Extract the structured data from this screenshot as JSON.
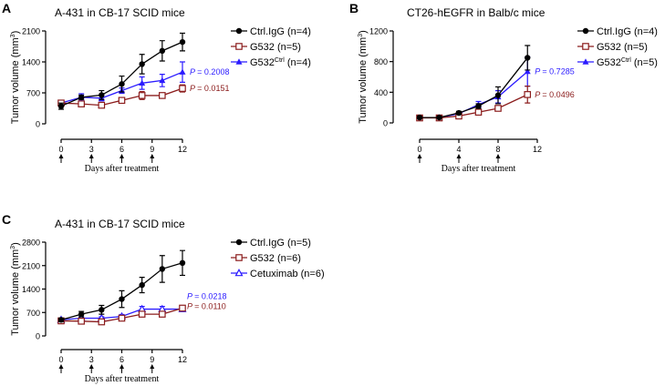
{
  "colors": {
    "ctrl": "#000000",
    "g532": "#8b1c1c",
    "blue": "#2b1bff"
  },
  "chart_data": [
    {
      "type": "line",
      "panel": "A",
      "title": "A-431 in CB-17 SCID mice",
      "ylabel": "Tumor volume (mm",
      "ylabel_sup": "3",
      "ylabel_end": ")",
      "xlabel": "Days after treatment",
      "ylim": [
        0,
        2100
      ],
      "yticks": [
        "0",
        "700",
        "1400",
        "2100"
      ],
      "xlim": [
        0,
        12
      ],
      "xticks": [
        "0",
        "3",
        "6",
        "9",
        "12"
      ],
      "arrows_at": [
        0,
        3,
        6,
        9
      ],
      "series": [
        {
          "name": "Ctrl.IgG",
          "sup": "",
          "n": "(n=4)",
          "marker": "circle",
          "color": "ctrl",
          "x": [
            0,
            2,
            4,
            6,
            8,
            10,
            12
          ],
          "y": [
            400,
            600,
            650,
            900,
            1350,
            1650,
            1850
          ],
          "err": [
            70,
            50,
            100,
            180,
            220,
            230,
            200
          ]
        },
        {
          "name": "G532",
          "sup": "",
          "n": "(n=5)",
          "marker": "square-open",
          "color": "g532",
          "x": [
            0,
            2,
            4,
            6,
            8,
            10,
            12
          ],
          "y": [
            470,
            450,
            420,
            530,
            640,
            640,
            800
          ],
          "err": [
            40,
            30,
            30,
            40,
            90,
            50,
            80
          ],
          "p": "= 0.0151"
        },
        {
          "name": "G532",
          "sup": "Ctrl",
          "n": "(n=4)",
          "marker": "triangle",
          "color": "blue",
          "x": [
            0,
            2,
            4,
            6,
            8,
            10,
            12
          ],
          "y": [
            470,
            600,
            580,
            750,
            920,
            980,
            1170
          ],
          "err": [
            40,
            80,
            60,
            60,
            140,
            140,
            230
          ],
          "p": "= 0.2008"
        }
      ]
    },
    {
      "type": "line",
      "panel": "B",
      "title": "CT26-hEGFR in Balb/c mice",
      "ylabel": "Tumor volume (mm",
      "ylabel_sup": "3",
      "ylabel_end": ")",
      "xlabel": "Days after treatment",
      "ylim": [
        0,
        1200
      ],
      "yticks": [
        "0",
        "400",
        "800",
        "1200"
      ],
      "xlim": [
        0,
        12
      ],
      "xticks": [
        "0",
        "4",
        "8",
        "12"
      ],
      "arrows_at": [
        0,
        4,
        8
      ],
      "series": [
        {
          "name": "Ctrl.IgG",
          "sup": "",
          "n": "(n=4)",
          "marker": "circle",
          "color": "ctrl",
          "x": [
            0,
            2,
            4,
            6,
            8,
            11
          ],
          "y": [
            70,
            70,
            130,
            220,
            360,
            850
          ],
          "err": [
            15,
            10,
            20,
            30,
            110,
            160
          ]
        },
        {
          "name": "G532",
          "sup": "",
          "n": "(n=5)",
          "marker": "square-open",
          "color": "g532",
          "x": [
            0,
            2,
            4,
            6,
            8,
            11
          ],
          "y": [
            65,
            65,
            90,
            140,
            190,
            370
          ],
          "err": [
            10,
            10,
            15,
            20,
            30,
            110
          ],
          "p": "= 0.0496"
        },
        {
          "name": "G532",
          "sup": "Ctrl",
          "n": "(n=5)",
          "marker": "triangle",
          "color": "blue",
          "x": [
            0,
            2,
            4,
            6,
            8,
            11
          ],
          "y": [
            65,
            70,
            120,
            240,
            340,
            670
          ],
          "err": [
            10,
            10,
            20,
            40,
            80,
            190
          ],
          "p": "= 0.7285"
        }
      ]
    },
    {
      "type": "line",
      "panel": "C",
      "title": "A-431 in CB-17 SCID mice",
      "ylabel": "Tumor volume (mm",
      "ylabel_sup": "3",
      "ylabel_end": ")",
      "xlabel": "Days after treatment",
      "ylim": [
        0,
        2800
      ],
      "yticks": [
        "0",
        "700",
        "1400",
        "2100",
        "2800"
      ],
      "xlim": [
        0,
        12
      ],
      "xticks": [
        "0",
        "3",
        "6",
        "9",
        "12"
      ],
      "arrows_at": [
        0,
        3,
        6,
        9
      ],
      "series": [
        {
          "name": "Ctrl.IgG",
          "sup": "",
          "n": "(n=5)",
          "marker": "circle",
          "color": "ctrl",
          "x": [
            0,
            2,
            4,
            6,
            8,
            10,
            12
          ],
          "y": [
            480,
            650,
            780,
            1100,
            1520,
            2000,
            2180
          ],
          "err": [
            50,
            80,
            130,
            250,
            230,
            400,
            370
          ]
        },
        {
          "name": "G532",
          "sup": "",
          "n": "(n=6)",
          "marker": "square-open",
          "color": "g532",
          "x": [
            0,
            2,
            4,
            6,
            8,
            10,
            12
          ],
          "y": [
            450,
            440,
            420,
            530,
            650,
            650,
            830
          ],
          "err": [
            30,
            30,
            30,
            40,
            50,
            50,
            50
          ],
          "p": "= 0.0110"
        },
        {
          "name": "Cetuximab",
          "sup": "",
          "n": "(n=6)",
          "marker": "triangle-open",
          "color": "blue",
          "x": [
            0,
            2,
            4,
            6,
            8,
            10,
            12
          ],
          "y": [
            480,
            530,
            530,
            580,
            800,
            800,
            800
          ],
          "err": [
            30,
            30,
            40,
            60,
            80,
            80,
            60
          ],
          "p": "= 0.0218"
        }
      ]
    }
  ]
}
